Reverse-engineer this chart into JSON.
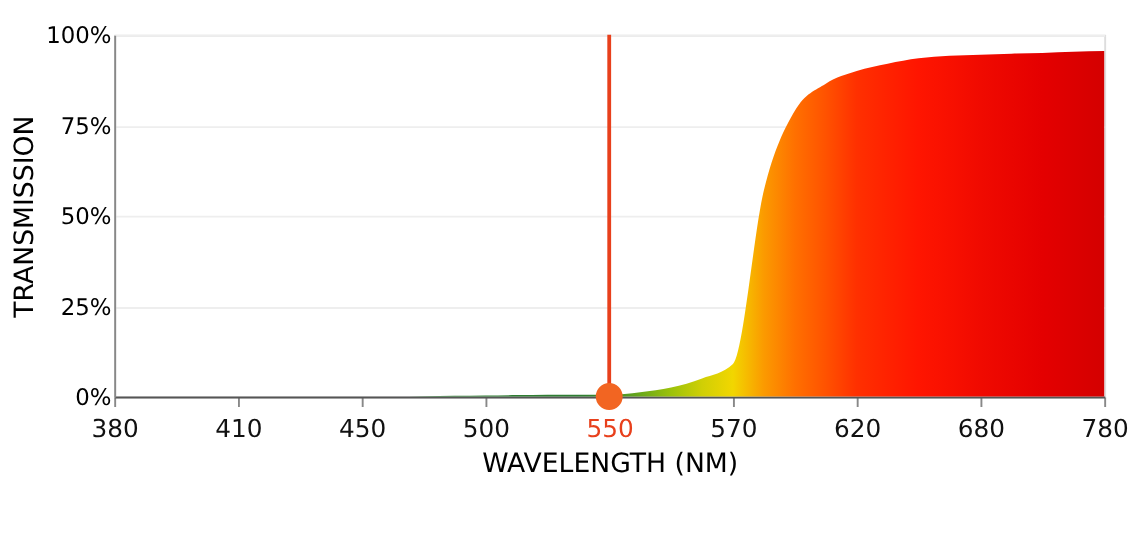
{
  "chart_data": {
    "type": "area",
    "xlabel": "WAVELENGTH (NM)",
    "ylabel": "TRANSMISSION",
    "categories": [
      "380",
      null,
      null,
      null,
      "410",
      null,
      null,
      null,
      "450",
      null,
      null,
      null,
      "500",
      null,
      null,
      null,
      "550",
      null,
      null,
      null,
      "570",
      null,
      null,
      null,
      "620",
      null,
      null,
      null,
      "680",
      null,
      null,
      null,
      "780"
    ],
    "ylim": [
      0,
      100
    ],
    "yticks": [
      {
        "value": 0,
        "label": "0%"
      },
      {
        "value": 25,
        "label": "25%"
      },
      {
        "value": 50,
        "label": "50%"
      },
      {
        "value": 75,
        "label": "75%"
      },
      {
        "value": 100,
        "label": "100%"
      }
    ],
    "grid": "y",
    "series": [
      {
        "colors": [
          "#2e7d32",
          "#2e7d32",
          "#2e7d32",
          "#2e7d32",
          "#2e7d32",
          "#2e7d32",
          "#2e7d32",
          "#2e7d32",
          "#2e7d32",
          "#2e7d32",
          "#2e7d32",
          "#2e7d32",
          "#2e7d32",
          "#2e7d32",
          "#2e7d32",
          "#2e7d32",
          "#3a8a2a",
          "#6aa81a",
          "#9cc20a",
          "#d0cf05",
          "#f2d600",
          "#fb9a00",
          "#ff7000",
          "#ff5200",
          "#ff3000",
          "#ff2200",
          "#ff1500",
          "#f81000",
          "#f00a00",
          "#ea0500",
          "#e40000",
          "#dc0000",
          "#d40000"
        ],
        "values": [
          0,
          0,
          0,
          0,
          0,
          0,
          0,
          0,
          0,
          0,
          0.1,
          0.2,
          0.3,
          0.4,
          0.5,
          0.5,
          0.5,
          1.2,
          2.5,
          5,
          9,
          57,
          79,
          86.5,
          90,
          92,
          93.5,
          94.2,
          94.5,
          94.8,
          95,
          95.3,
          95.5
        ]
      },
      {
        "type": "scatter",
        "marker": "circle",
        "color": "#f26522",
        "x": [
          "550"
        ],
        "values": [
          0
        ]
      }
    ],
    "ref_lines": [
      {
        "axis": "x",
        "value": "550",
        "color": "#e8401c"
      }
    ]
  }
}
